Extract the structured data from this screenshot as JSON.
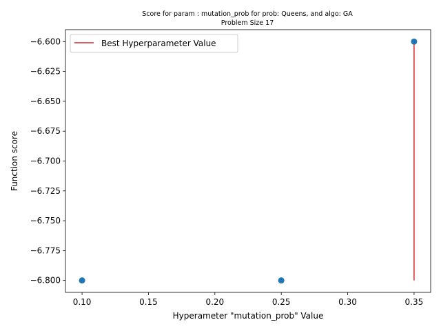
{
  "chart_data": {
    "type": "scatter",
    "title": "Score for param : mutation_prob for prob: Queens, and algo: GA",
    "subtitle": "Problem Size 17",
    "xlabel": "Hyperameter \"mutation_prob\" Value",
    "ylabel": "Function score",
    "xlim": [
      0.0875,
      0.3625
    ],
    "ylim": [
      -6.81,
      -6.59
    ],
    "x_ticks": [
      0.1,
      0.15,
      0.2,
      0.25,
      0.3,
      0.35
    ],
    "x_tick_labels": [
      "0.10",
      "0.15",
      "0.20",
      "0.25",
      "0.30",
      "0.35"
    ],
    "y_ticks": [
      -6.6,
      -6.625,
      -6.65,
      -6.675,
      -6.7,
      -6.725,
      -6.75,
      -6.775,
      -6.8
    ],
    "y_tick_labels": [
      "−6.600",
      "−6.625",
      "−6.650",
      "−6.675",
      "−6.700",
      "−6.725",
      "−6.750",
      "−6.775",
      "−6.800"
    ],
    "points": [
      {
        "x": 0.1,
        "y": -6.8
      },
      {
        "x": 0.25,
        "y": -6.8
      },
      {
        "x": 0.35,
        "y": -6.6
      }
    ],
    "best_line": {
      "x": 0.35,
      "y_from": -6.8,
      "y_to": -6.6
    },
    "legend": {
      "entries": [
        "Best Hyperparameter Value"
      ],
      "placement": "top-left"
    },
    "grid": false,
    "colors": {
      "points": "#1f77b4",
      "best_line": "#d62728",
      "axes": "#000000"
    }
  }
}
